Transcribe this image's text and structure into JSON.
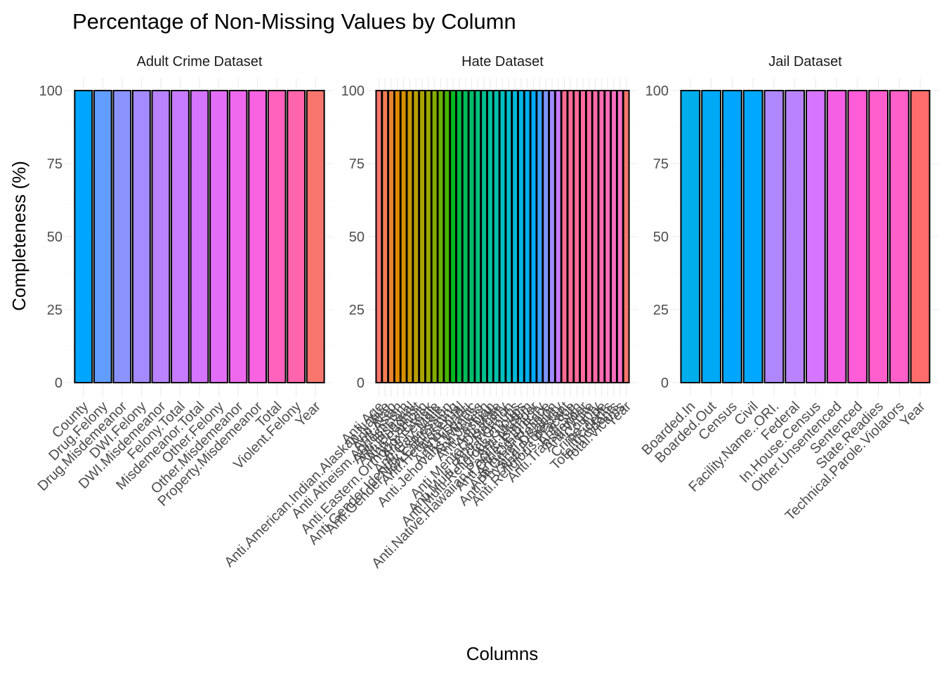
{
  "chart_data": {
    "type": "bar",
    "title": "Percentage of Non-Missing Values by Column",
    "xlabel": "Columns",
    "ylabel": "Completeness (%)",
    "ylim": [
      0,
      100
    ],
    "yticks": [
      0,
      25,
      50,
      75,
      100
    ],
    "grid": true,
    "legend": "none",
    "facets": [
      {
        "name": "Adult Crime Dataset",
        "categories": [
          "County",
          "Drug.Felony",
          "Drug.Misdemeanor",
          "DWI.Felony",
          "DWI.Misdemeanor",
          "Felony.Total",
          "Misdemeanor.Total",
          "Other.Felony",
          "Other.Misdemeanor",
          "Property.Misdemeanor",
          "Total",
          "Violent.Felony",
          "Year"
        ],
        "values": [
          100,
          100,
          100,
          100,
          100,
          100,
          100,
          100,
          100,
          100,
          100,
          100,
          100
        ],
        "colors": [
          "#00A5FF",
          "#619CFF",
          "#8B93FF",
          "#A58AFF",
          "#B983FF",
          "#C77CFF",
          "#D575FE",
          "#E26EF7",
          "#ED68ED",
          "#F763E0",
          "#FF62BC",
          "#FF65AC",
          "#F8766D"
        ]
      },
      {
        "name": "Hate Dataset",
        "categories": [
          "Anti.Age",
          "Anti.American.Indian.Alaskan.Native",
          "Anti.Arab",
          "Anti.Asian",
          "Anti.Atheism.Agnosticism",
          "Anti.Bisexual",
          "Anti.Buddhist",
          "Anti.Catholic",
          "Anti.Eastern.Orthodox.Greek",
          "Anti.Female",
          "Anti.Gay..Male.",
          "Anti.Gender.Identity.Expression",
          "Anti.Gender.Non.Conforming",
          "Anti.Heterosexual",
          "Anti.Hindu",
          "Anti.Hispanic",
          "Anti.Jehovahs.Witness",
          "Anti.Jewish",
          "Anti.Lesbian",
          "Anti.Male",
          "Anti.Mental.Disability",
          "Anti.Mormon",
          "Anti.Multi.Racial.Groups",
          "Anti.Multi.Religious.Groups",
          "Anti.Muslim",
          "Anti.Native.Hawaiian.Pacific.Islander",
          "Anti.Other.Ethnicity",
          "Anti.Other.Race",
          "Anti.Other.Religion",
          "Anti.Physical.Disability",
          "Anti.Protestant",
          "Anti.Religious.Practice",
          "Anti.Sikh",
          "Anti.Transgender",
          "Anti.White",
          "County",
          "Crime.Type",
          "Incidents",
          "Total.Incidents",
          "Total.Victims",
          "Year"
        ],
        "values": [
          100,
          100,
          100,
          100,
          100,
          100,
          100,
          100,
          100,
          100,
          100,
          100,
          100,
          100,
          100,
          100,
          100,
          100,
          100,
          100,
          100,
          100,
          100,
          100,
          100,
          100,
          100,
          100,
          100,
          100,
          100,
          100,
          100,
          100,
          100,
          100,
          100,
          100,
          100,
          100,
          100
        ],
        "colors": [
          "#F8766D",
          "#F27D52",
          "#EA8331",
          "#E18A00",
          "#D69100",
          "#C99800",
          "#BB9D00",
          "#ABA300",
          "#9AA800",
          "#85AD00",
          "#6BB100",
          "#47B500",
          "#00B81F",
          "#00BA42",
          "#00BC59",
          "#00BE6C",
          "#00BF7D",
          "#00C08E",
          "#00C19E",
          "#00C0AD",
          "#00BFBC",
          "#00BDCA",
          "#00BAD8",
          "#00B5E5",
          "#00B0F1",
          "#00A9FC",
          "#35A2FF",
          "#7C96FF",
          "#A08BFF",
          "#C77CFF",
          "#FF6C91",
          "#FF6B96",
          "#FF6A9B",
          "#FE6A9F",
          "#FC6AA4",
          "#FB6BA9",
          "#FA6CB0",
          "#F96DB7",
          "#F86EBE",
          "#F870C4",
          "#F8766D"
        ]
      },
      {
        "name": "Jail Dataset",
        "categories": [
          "Boarded.In",
          "Boarded.Out",
          "Census",
          "Civil",
          "Facility.Name..ORI.",
          "Federal",
          "In.House.Census",
          "Other.Unsentenced",
          "Sentenced",
          "State.Readies",
          "Technical.Parole.Violators",
          "Year"
        ],
        "values": [
          100,
          100,
          100,
          100,
          100,
          100,
          100,
          100,
          100,
          100,
          100,
          100
        ],
        "colors": [
          "#00AEEB",
          "#00A9F6",
          "#00A5FF",
          "#00A9FF",
          "#AF87FF",
          "#B983FF",
          "#D575FE",
          "#F45FE3",
          "#FF5CD7",
          "#FF5ECD",
          "#FF5FC8",
          "#FF6C6C"
        ]
      }
    ]
  }
}
